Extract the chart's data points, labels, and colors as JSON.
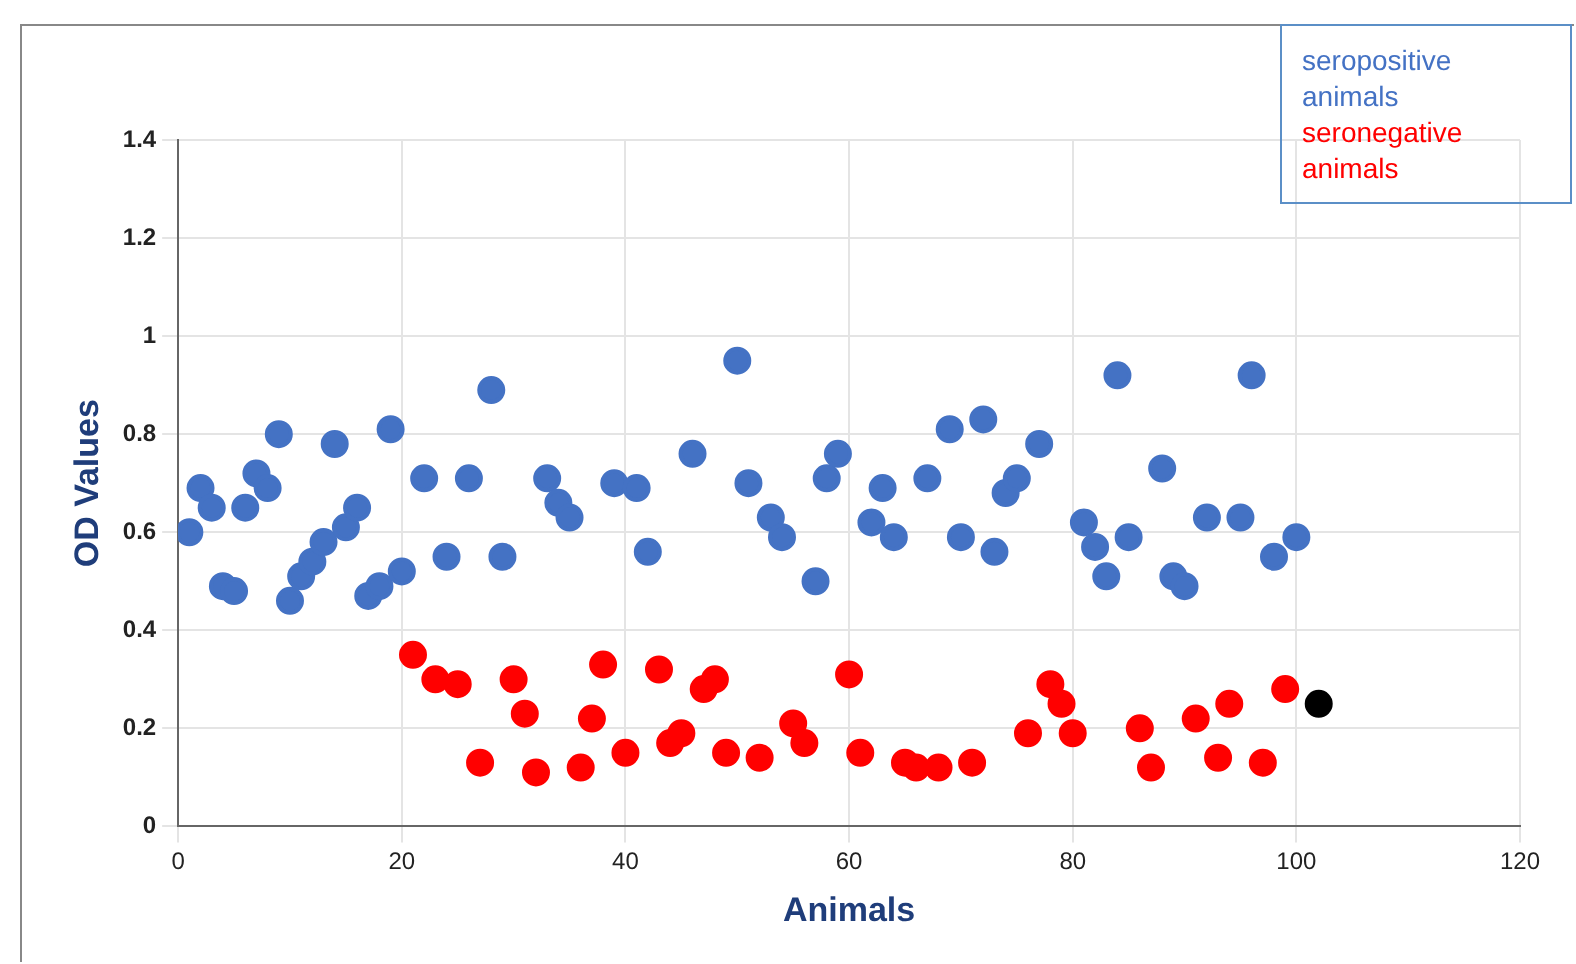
{
  "chart_data": {
    "type": "scatter",
    "xlabel": "Animals",
    "ylabel": "OD Values",
    "xlim": [
      0,
      120
    ],
    "xticks": [
      0,
      20,
      40,
      60,
      80,
      100,
      120
    ],
    "ylim": [
      0,
      1.4
    ],
    "yticks": [
      0,
      0.2,
      0.4,
      0.6,
      0.8,
      1,
      1.2,
      1.4
    ],
    "grid": true,
    "legend": "top right",
    "marker": "circle",
    "series": [
      {
        "name": "seropositive animals",
        "color": "#4472c4",
        "x": [
          1,
          2,
          3,
          4,
          5,
          6,
          7,
          8,
          9,
          10,
          11,
          12,
          13,
          14,
          15,
          16,
          17,
          18,
          19,
          20,
          22,
          24,
          26,
          28,
          29,
          33,
          34,
          35,
          39,
          41,
          42,
          46,
          50,
          51,
          53,
          54,
          57,
          58,
          59,
          62,
          63,
          64,
          67,
          69,
          70,
          72,
          73,
          74,
          75,
          77,
          81,
          82,
          83,
          84,
          85,
          88,
          89,
          90,
          92,
          95,
          96,
          98,
          100
        ],
        "values": [
          0.6,
          0.69,
          0.65,
          0.49,
          0.48,
          0.65,
          0.72,
          0.69,
          0.8,
          0.46,
          0.51,
          0.54,
          0.58,
          0.78,
          0.61,
          0.65,
          0.47,
          0.49,
          0.81,
          0.52,
          0.71,
          0.55,
          0.71,
          0.89,
          0.55,
          0.71,
          0.66,
          0.63,
          0.7,
          0.69,
          0.56,
          0.76,
          0.95,
          0.7,
          0.63,
          0.59,
          0.5,
          0.71,
          0.76,
          0.62,
          0.69,
          0.59,
          0.71,
          0.81,
          0.59,
          0.83,
          0.56,
          0.68,
          0.71,
          0.78,
          0.62,
          0.57,
          0.51,
          0.92,
          0.59,
          0.73,
          0.51,
          0.49,
          0.63,
          0.63,
          0.92,
          0.55,
          0.59
        ]
      },
      {
        "name": "seronegative animals",
        "color": "#ff0000",
        "x": [
          21,
          23,
          25,
          27,
          30,
          31,
          32,
          36,
          37,
          38,
          40,
          43,
          44,
          45,
          47,
          48,
          49,
          52,
          55,
          56,
          60,
          61,
          65,
          66,
          68,
          71,
          76,
          78,
          79,
          80,
          86,
          87,
          91,
          93,
          94,
          97,
          99
        ],
        "values": [
          0.35,
          0.3,
          0.29,
          0.13,
          0.3,
          0.23,
          0.11,
          0.12,
          0.22,
          0.33,
          0.15,
          0.32,
          0.17,
          0.19,
          0.28,
          0.3,
          0.15,
          0.14,
          0.21,
          0.17,
          0.31,
          0.15,
          0.13,
          0.12,
          0.12,
          0.13,
          0.19,
          0.29,
          0.25,
          0.19,
          0.2,
          0.12,
          0.22,
          0.14,
          0.25,
          0.13,
          0.28
        ]
      },
      {
        "color": "#000000",
        "x": [
          102
        ],
        "values": [
          0.25
        ]
      }
    ]
  }
}
